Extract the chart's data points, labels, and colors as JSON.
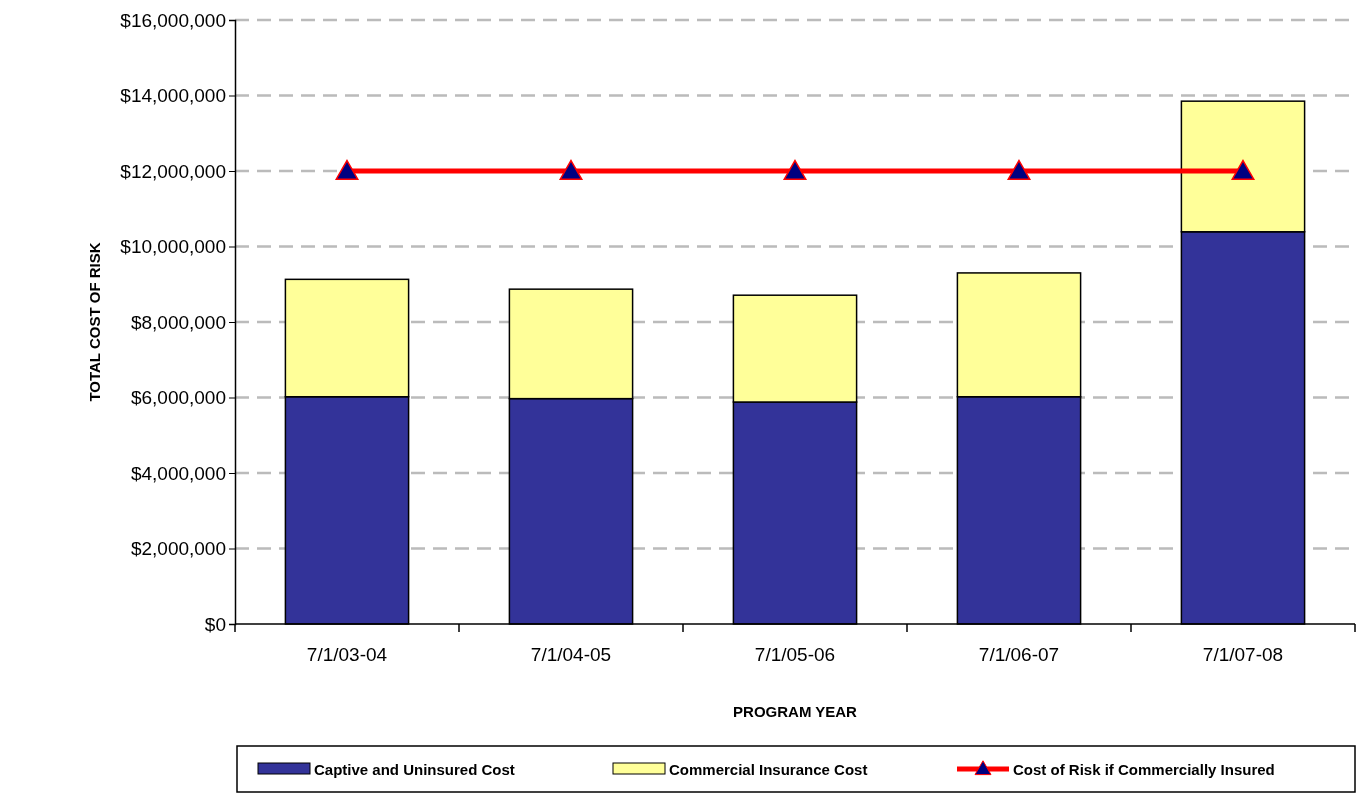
{
  "chart_data": {
    "type": "bar",
    "stacked": true,
    "xlabel": "PROGRAM YEAR",
    "ylabel": "TOTAL COST OF RISK",
    "categories": [
      "7/1/03-04",
      "7/1/04-05",
      "7/1/05-06",
      "7/1/06-07",
      "7/1/07-08"
    ],
    "series": [
      {
        "name": "Captive and Uninsured Cost",
        "color": "#333399",
        "values": [
          6020000,
          5970000,
          5880000,
          6020000,
          10390000
        ]
      },
      {
        "name": "Commercial Insurance Cost",
        "color": "#ffff99",
        "values": [
          3110000,
          2900000,
          2830000,
          3280000,
          3460000
        ]
      },
      {
        "name": "Cost of Risk if Commercially Insured",
        "type": "line",
        "color": "#ff0000",
        "marker": "triangle",
        "values": [
          12000000,
          12000000,
          12000000,
          12000000,
          12000000
        ]
      }
    ],
    "ylim": [
      0,
      16000000
    ],
    "yticks": [
      {
        "value": 0,
        "label": "$0"
      },
      {
        "value": 2000000,
        "label": "$2,000,000"
      },
      {
        "value": 4000000,
        "label": "$4,000,000"
      },
      {
        "value": 6000000,
        "label": "$6,000,000"
      },
      {
        "value": 8000000,
        "label": "$8,000,000"
      },
      {
        "value": 10000000,
        "label": "$10,000,000"
      },
      {
        "value": 12000000,
        "label": "$12,000,000"
      },
      {
        "value": 14000000,
        "label": "$14,000,000"
      },
      {
        "value": 16000000,
        "label": "$16,000,000"
      }
    ],
    "grid": "y",
    "legend": "bottom"
  }
}
